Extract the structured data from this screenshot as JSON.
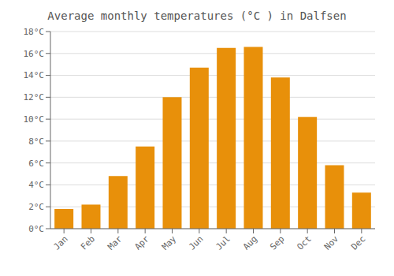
{
  "chart_data": {
    "type": "bar",
    "title": "Average monthly temperatures (°C ) in Dalfsen",
    "categories": [
      "Jan",
      "Feb",
      "Mar",
      "Apr",
      "May",
      "Jun",
      "Jul",
      "Aug",
      "Sep",
      "Oct",
      "Nov",
      "Dec"
    ],
    "values": [
      1.8,
      2.2,
      4.8,
      7.5,
      12.0,
      14.7,
      16.5,
      16.6,
      13.8,
      10.2,
      5.8,
      3.3
    ],
    "color": "#E8900A",
    "ylim": [
      0,
      18
    ],
    "yticks": [
      {
        "value": 0,
        "label": "0°C"
      },
      {
        "value": 2,
        "label": "2°C"
      },
      {
        "value": 4,
        "label": "4°C"
      },
      {
        "value": 6,
        "label": "6°C"
      },
      {
        "value": 8,
        "label": "8°C"
      },
      {
        "value": 10,
        "label": "10°C"
      },
      {
        "value": 12,
        "label": "12°C"
      },
      {
        "value": 14,
        "label": "14°C"
      },
      {
        "value": 16,
        "label": "16°C"
      },
      {
        "value": 18,
        "label": "18°C"
      }
    ],
    "grid": true
  }
}
